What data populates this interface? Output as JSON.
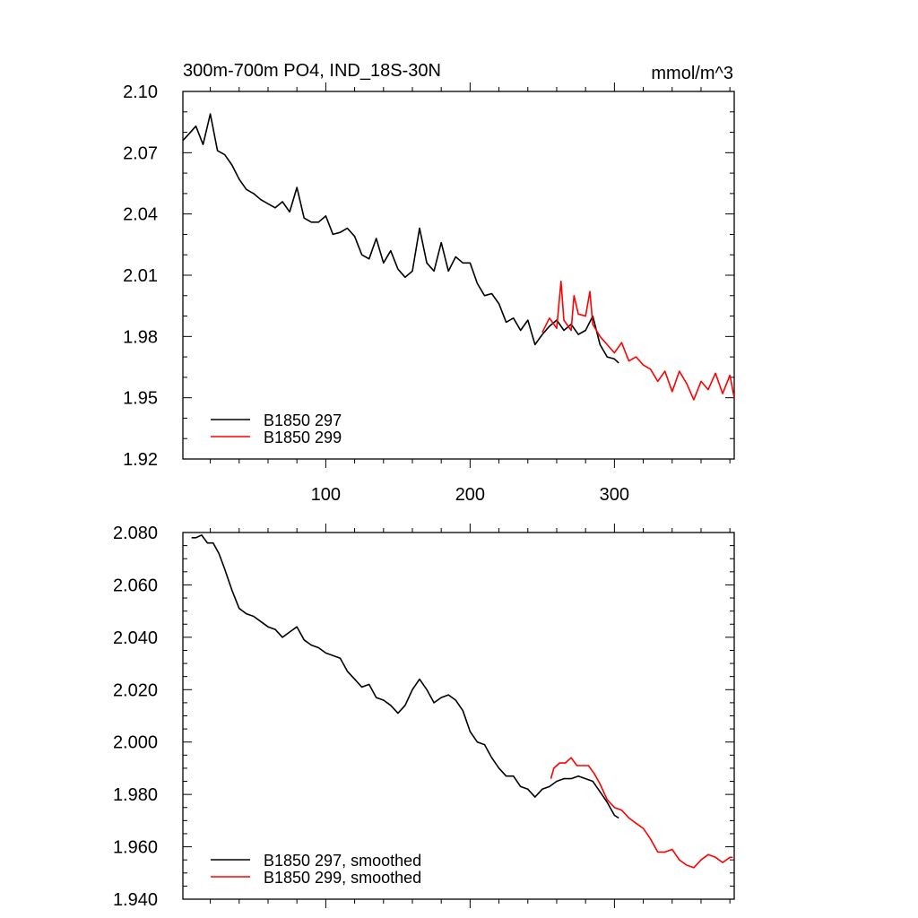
{
  "chart_data": [
    {
      "type": "line",
      "title_left": "300m-700m PO4, IND_18S-30N",
      "title_right": "mmol/m^3",
      "xlabel": "",
      "ylabel": "",
      "xlim": [
        1,
        383
      ],
      "ylim": [
        1.92,
        2.1
      ],
      "xticks": [
        100,
        200,
        300
      ],
      "xtick_labels": [
        "100",
        "200",
        "300"
      ],
      "yticks": [
        1.92,
        1.95,
        1.98,
        2.01,
        2.04,
        2.07,
        2.1
      ],
      "ytick_labels": [
        "1.92",
        "1.95",
        "1.98",
        "2.01",
        "2.04",
        "2.07",
        "2.10"
      ],
      "grid": false,
      "legend_position": "bottom-left",
      "series": [
        {
          "name": "B1850 297",
          "color": "#000000",
          "x": [
            1,
            5,
            10,
            15,
            20,
            25,
            30,
            35,
            40,
            45,
            50,
            55,
            60,
            65,
            70,
            75,
            80,
            85,
            90,
            95,
            100,
            105,
            110,
            115,
            120,
            125,
            130,
            135,
            140,
            145,
            150,
            155,
            160,
            165,
            170,
            175,
            180,
            185,
            190,
            195,
            200,
            205,
            210,
            215,
            220,
            225,
            230,
            235,
            240,
            245,
            250,
            255,
            260,
            265,
            270,
            275,
            280,
            285,
            290,
            295,
            300,
            303
          ],
          "y": [
            2.076,
            2.079,
            2.083,
            2.074,
            2.089,
            2.071,
            2.069,
            2.064,
            2.057,
            2.052,
            2.05,
            2.047,
            2.045,
            2.043,
            2.046,
            2.041,
            2.053,
            2.038,
            2.036,
            2.036,
            2.039,
            2.03,
            2.031,
            2.033,
            2.029,
            2.02,
            2.018,
            2.028,
            2.016,
            2.022,
            2.013,
            2.009,
            2.012,
            2.033,
            2.016,
            2.012,
            2.026,
            2.012,
            2.019,
            2.016,
            2.016,
            2.006,
            2.0,
            2.001,
            1.996,
            1.987,
            1.989,
            1.983,
            1.988,
            1.976,
            1.981,
            1.985,
            1.988,
            1.983,
            1.986,
            1.981,
            1.983,
            1.99,
            1.976,
            1.97,
            1.969,
            1.967
          ]
        },
        {
          "name": "B1850 299",
          "color": "#ff0000",
          "x": [
            250,
            255,
            260,
            263,
            265,
            270,
            272,
            275,
            280,
            283,
            285,
            290,
            295,
            300,
            305,
            310,
            315,
            320,
            325,
            330,
            335,
            340,
            345,
            350,
            355,
            360,
            365,
            370,
            375,
            380,
            383
          ],
          "y": [
            1.982,
            1.989,
            1.984,
            2.007,
            1.988,
            1.983,
            2.0,
            1.991,
            1.99,
            2.002,
            1.986,
            1.98,
            1.976,
            1.972,
            1.977,
            1.968,
            1.97,
            1.966,
            1.964,
            1.958,
            1.963,
            1.953,
            1.963,
            1.957,
            1.949,
            1.958,
            1.954,
            1.962,
            1.952,
            1.961,
            1.95
          ]
        }
      ]
    },
    {
      "type": "line",
      "xlabel": "",
      "ylabel": "",
      "xlim": [
        1,
        383
      ],
      "ylim": [
        1.94,
        2.08
      ],
      "xticks": [
        100,
        200,
        300
      ],
      "yticks": [
        1.94,
        1.96,
        1.98,
        2.0,
        2.02,
        2.04,
        2.06,
        2.08
      ],
      "ytick_labels": [
        "1.940",
        "1.960",
        "1.980",
        "2.000",
        "2.020",
        "2.040",
        "2.060",
        "2.080"
      ],
      "grid": false,
      "legend_position": "bottom-left",
      "series": [
        {
          "name": "B1850 297, smoothed",
          "color": "#000000",
          "x": [
            7,
            10,
            14,
            18,
            22,
            26,
            30,
            35,
            40,
            45,
            50,
            55,
            60,
            65,
            70,
            75,
            80,
            85,
            90,
            95,
            100,
            105,
            110,
            115,
            120,
            125,
            130,
            135,
            140,
            145,
            150,
            155,
            160,
            165,
            170,
            175,
            180,
            185,
            190,
            195,
            200,
            205,
            210,
            215,
            220,
            225,
            230,
            235,
            240,
            245,
            250,
            255,
            260,
            265,
            270,
            275,
            280,
            285,
            290,
            295,
            300,
            303
          ],
          "y": [
            2.078,
            2.078,
            2.079,
            2.076,
            2.076,
            2.072,
            2.066,
            2.058,
            2.051,
            2.049,
            2.048,
            2.046,
            2.044,
            2.043,
            2.04,
            2.042,
            2.044,
            2.039,
            2.037,
            2.036,
            2.034,
            2.033,
            2.032,
            2.027,
            2.024,
            2.021,
            2.022,
            2.017,
            2.016,
            2.014,
            2.011,
            2.014,
            2.02,
            2.024,
            2.02,
            2.015,
            2.017,
            2.018,
            2.016,
            2.012,
            2.004,
            2.0,
            1.999,
            1.994,
            1.99,
            1.987,
            1.987,
            1.983,
            1.982,
            1.979,
            1.982,
            1.983,
            1.985,
            1.986,
            1.986,
            1.987,
            1.986,
            1.985,
            1.981,
            1.977,
            1.972,
            1.971
          ]
        },
        {
          "name": "B1850 299, smoothed",
          "color": "#ff0000",
          "x": [
            256,
            258,
            262,
            266,
            270,
            274,
            278,
            282,
            286,
            290,
            295,
            300,
            305,
            310,
            315,
            320,
            325,
            330,
            335,
            340,
            345,
            350,
            355,
            360,
            365,
            370,
            375,
            380,
            382
          ],
          "y": [
            1.986,
            1.99,
            1.992,
            1.992,
            1.994,
            1.991,
            1.991,
            1.991,
            1.988,
            1.984,
            1.978,
            1.975,
            1.974,
            1.971,
            1.969,
            1.967,
            1.963,
            1.958,
            1.958,
            1.959,
            1.955,
            1.953,
            1.952,
            1.955,
            1.957,
            1.956,
            1.954,
            1.956,
            1.956
          ]
        }
      ]
    }
  ]
}
